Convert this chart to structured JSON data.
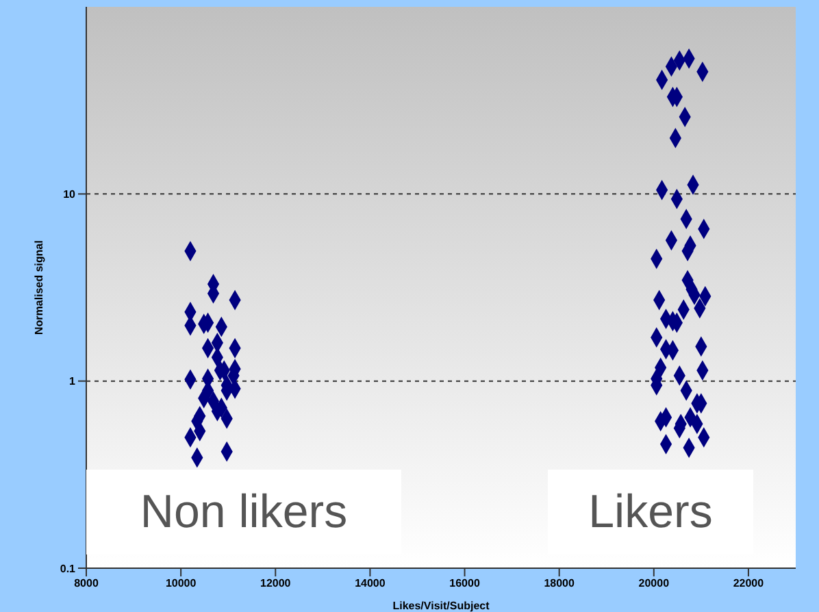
{
  "chart_data": {
    "type": "scatter",
    "xlabel": "Likes/Visit/Subject",
    "ylabel": "Normalised signal",
    "log": "y",
    "xlim": [
      8000,
      23000
    ],
    "xticks": [
      8000,
      10000,
      12000,
      14000,
      16000,
      18000,
      20000,
      22000
    ],
    "ylim": [
      0.1,
      100
    ],
    "yticks": [
      0.1,
      1,
      10
    ],
    "grid": "y",
    "marker": "diamond",
    "annotations": [
      "Non likers",
      "Likers"
    ],
    "series": [
      {
        "color": "#000080",
        "x": [
          10200,
          10686,
          10686,
          11143,
          10200,
          10200,
          10486,
          10571,
          10857,
          10571,
          10771,
          11143,
          10771,
          10829,
          10914,
          11143,
          11114,
          10200,
          10571,
          10971,
          11143,
          10571,
          10971,
          10486,
          10686,
          10857,
          10771,
          10400,
          10343,
          10971,
          10400,
          10200,
          10971,
          10343,
          20743,
          20543,
          20371,
          20171,
          21029,
          20400,
          20486,
          20657,
          20457,
          20171,
          20829,
          20486,
          20686,
          21057,
          20371,
          20771,
          20714,
          20057,
          20714,
          20800,
          20857,
          21086,
          20114,
          20629,
          20971,
          20257,
          20400,
          20486,
          20057,
          20257,
          20400,
          21000,
          20143,
          21029,
          20543,
          20057,
          20057,
          20686,
          20914,
          21000,
          20257,
          20143,
          20571,
          20543,
          20771,
          20914,
          21057,
          20257,
          20743
        ],
        "values": [
          4.95,
          3.3,
          2.94,
          2.71,
          2.34,
          1.98,
          2.02,
          2.05,
          1.95,
          1.5,
          1.6,
          1.5,
          1.34,
          1.14,
          1.14,
          1.16,
          1.07,
          1.02,
          1.03,
          0.95,
          0.91,
          0.89,
          0.89,
          0.81,
          0.78,
          0.72,
          0.69,
          0.65,
          0.61,
          0.63,
          0.54,
          0.5,
          0.42,
          0.39,
          52.9,
          51.7,
          48,
          40.7,
          45,
          33,
          33,
          25.8,
          19.9,
          10.5,
          11.2,
          9.4,
          7.35,
          6.5,
          5.65,
          5.3,
          4.95,
          4.5,
          3.46,
          3.09,
          2.89,
          2.84,
          2.71,
          2.41,
          2.45,
          2.15,
          2.09,
          2.05,
          1.71,
          1.48,
          1.46,
          1.53,
          1.18,
          1.14,
          1.07,
          1.03,
          0.95,
          0.89,
          0.76,
          0.76,
          0.64,
          0.61,
          0.59,
          0.56,
          0.64,
          0.59,
          0.5,
          0.46,
          0.44
        ]
      }
    ]
  }
}
